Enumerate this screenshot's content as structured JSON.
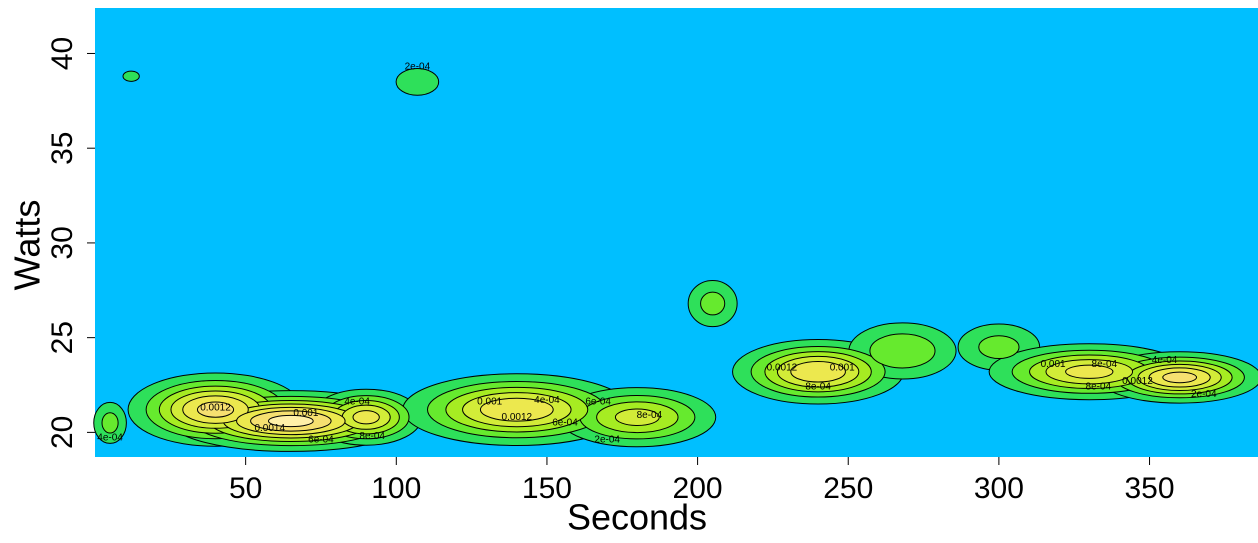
{
  "chart_data": {
    "type": "density-contour",
    "xlabel": "Seconds",
    "ylabel": "Watts",
    "xlim": [
      0,
      386
    ],
    "ylim": [
      18.7,
      42.4
    ],
    "xticks": [
      50,
      100,
      150,
      200,
      250,
      300,
      350
    ],
    "yticks": [
      20,
      25,
      30,
      35,
      40
    ],
    "background_color": "#00bfff",
    "levels": [
      {
        "value": 0.0002,
        "label": "2e-04"
      },
      {
        "value": 0.0004,
        "label": "4e-04"
      },
      {
        "value": 0.0006,
        "label": "6e-04"
      },
      {
        "value": 0.0008,
        "label": "8e-04"
      },
      {
        "value": 0.001,
        "label": "0.001"
      },
      {
        "value": 0.0012,
        "label": "0.0012"
      },
      {
        "value": 0.0014,
        "label": "0.0014"
      }
    ],
    "level_colors": [
      "#2ee05a",
      "#66ea2e",
      "#a6ec22",
      "#d2ec38",
      "#ece84e",
      "#f6e070",
      "#fff0a8"
    ],
    "line_color": "#000000",
    "peaks": [
      {
        "x": 5,
        "y": 20.5,
        "sx": 4,
        "sy": 0.8,
        "density": 0.0005
      },
      {
        "x": 12,
        "y": 38.8,
        "sx": 3,
        "sy": 0.3,
        "density": 0.0003
      },
      {
        "x": 40,
        "y": 21.2,
        "sx": 15,
        "sy": 1.0,
        "density": 0.0013
      },
      {
        "x": 65,
        "y": 20.6,
        "sx": 20,
        "sy": 0.8,
        "density": 0.0015
      },
      {
        "x": 90,
        "y": 20.8,
        "sx": 10,
        "sy": 0.8,
        "density": 0.0011
      },
      {
        "x": 107,
        "y": 38.5,
        "sx": 6,
        "sy": 0.6,
        "density": 0.0004
      },
      {
        "x": 140,
        "y": 21.2,
        "sx": 20,
        "sy": 1.0,
        "density": 0.0012
      },
      {
        "x": 180,
        "y": 20.8,
        "sx": 15,
        "sy": 0.9,
        "density": 0.0009
      },
      {
        "x": 205,
        "y": 26.8,
        "sx": 6,
        "sy": 0.9,
        "density": 0.0005
      },
      {
        "x": 240,
        "y": 23.2,
        "sx": 15,
        "sy": 0.9,
        "density": 0.0012
      },
      {
        "x": 268,
        "y": 24.3,
        "sx": 12,
        "sy": 1.0,
        "density": 0.0006
      },
      {
        "x": 300,
        "y": 24.5,
        "sx": 10,
        "sy": 0.9,
        "density": 0.0005
      },
      {
        "x": 330,
        "y": 23.2,
        "sx": 18,
        "sy": 0.8,
        "density": 0.0011
      },
      {
        "x": 360,
        "y": 22.9,
        "sx": 14,
        "sy": 0.7,
        "density": 0.0013
      }
    ],
    "contour_labels": [
      {
        "x": 107,
        "y": 39.3,
        "text": "2e-04"
      },
      {
        "x": 40,
        "y": 21.3,
        "text": "0.0012"
      },
      {
        "x": 70,
        "y": 21.0,
        "text": "0.001"
      },
      {
        "x": 87,
        "y": 21.6,
        "text": "4e-04"
      },
      {
        "x": 58,
        "y": 20.2,
        "text": "0.0014"
      },
      {
        "x": 75,
        "y": 19.6,
        "text": "6e-04"
      },
      {
        "x": 92,
        "y": 19.8,
        "text": "8e-04"
      },
      {
        "x": 5,
        "y": 19.7,
        "text": "4e-04"
      },
      {
        "x": 131,
        "y": 21.6,
        "text": "0.001"
      },
      {
        "x": 150,
        "y": 21.7,
        "text": "4e-04"
      },
      {
        "x": 167,
        "y": 21.6,
        "text": "6e-04"
      },
      {
        "x": 140,
        "y": 20.8,
        "text": "0.0012"
      },
      {
        "x": 156,
        "y": 20.5,
        "text": "6e-04"
      },
      {
        "x": 184,
        "y": 20.9,
        "text": "8e-04"
      },
      {
        "x": 170,
        "y": 19.6,
        "text": "2e-04"
      },
      {
        "x": 228,
        "y": 23.4,
        "text": "0.0012"
      },
      {
        "x": 248,
        "y": 23.4,
        "text": "0.001"
      },
      {
        "x": 240,
        "y": 22.4,
        "text": "8e-04"
      },
      {
        "x": 318,
        "y": 23.6,
        "text": "0.001"
      },
      {
        "x": 335,
        "y": 23.6,
        "text": "8e-04"
      },
      {
        "x": 355,
        "y": 23.8,
        "text": "4e-04"
      },
      {
        "x": 333,
        "y": 22.4,
        "text": "8e-04"
      },
      {
        "x": 346,
        "y": 22.7,
        "text": "0.0012"
      },
      {
        "x": 368,
        "y": 22.0,
        "text": "2e-04"
      }
    ]
  }
}
